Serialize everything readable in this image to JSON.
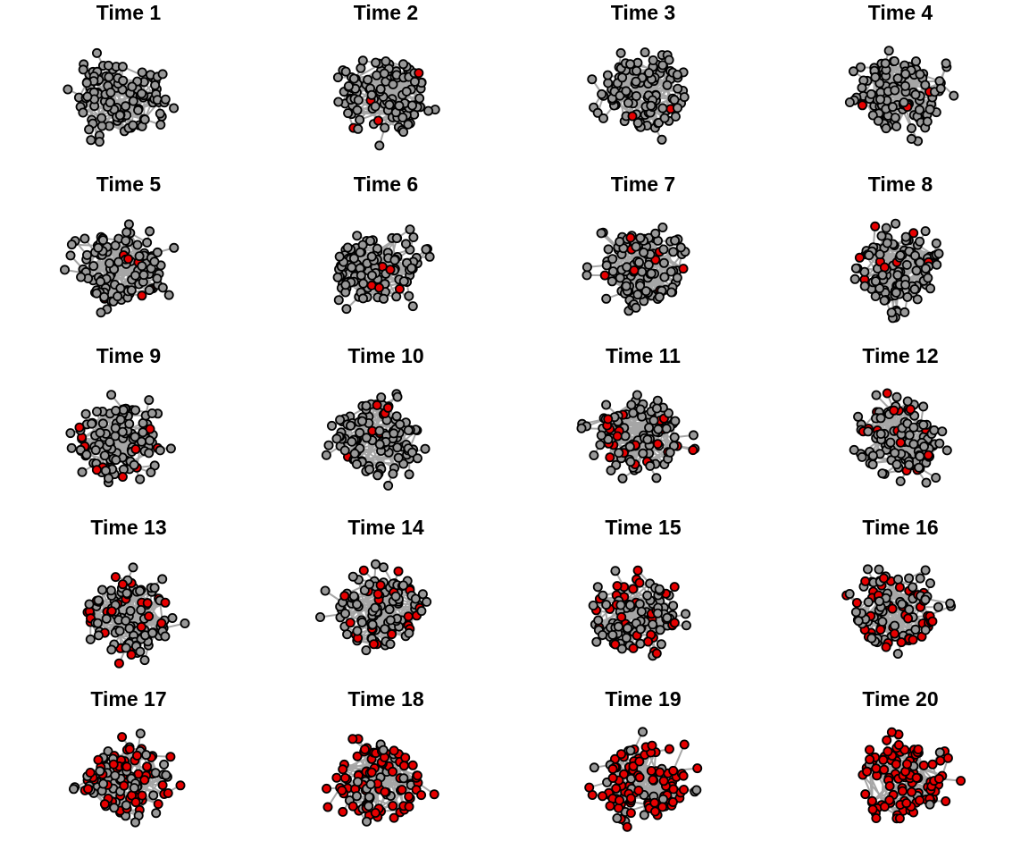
{
  "figure": {
    "panels": [
      {
        "title": "Time 1",
        "infected_share": 0.01
      },
      {
        "title": "Time 2",
        "infected_share": 0.03
      },
      {
        "title": "Time 3",
        "infected_share": 0.03
      },
      {
        "title": "Time 4",
        "infected_share": 0.03
      },
      {
        "title": "Time 5",
        "infected_share": 0.06
      },
      {
        "title": "Time 6",
        "infected_share": 0.06
      },
      {
        "title": "Time 7",
        "infected_share": 0.06
      },
      {
        "title": "Time 8",
        "infected_share": 0.08
      },
      {
        "title": "Time 9",
        "infected_share": 0.1
      },
      {
        "title": "Time 10",
        "infected_share": 0.12
      },
      {
        "title": "Time 11",
        "infected_share": 0.14
      },
      {
        "title": "Time 12",
        "infected_share": 0.16
      },
      {
        "title": "Time 13",
        "infected_share": 0.22
      },
      {
        "title": "Time 14",
        "infected_share": 0.26
      },
      {
        "title": "Time 15",
        "infected_share": 0.32
      },
      {
        "title": "Time 16",
        "infected_share": 0.45
      },
      {
        "title": "Time 17",
        "infected_share": 0.55
      },
      {
        "title": "Time 18",
        "infected_share": 0.7
      },
      {
        "title": "Time 19",
        "infected_share": 0.8
      },
      {
        "title": "Time 20",
        "infected_share": 0.92
      }
    ],
    "colors": {
      "susceptible_node": "#999999",
      "infected_node": "#e60000",
      "node_border": "#000000",
      "edge": "#a6a6a6"
    }
  }
}
